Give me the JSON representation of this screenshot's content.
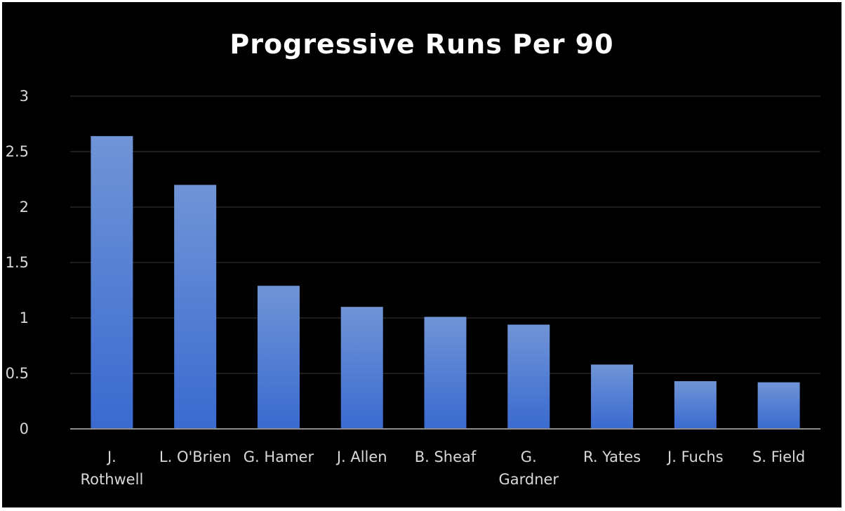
{
  "chart_data": {
    "type": "bar",
    "title": "Progressive Runs Per 90",
    "xlabel": "",
    "ylabel": "",
    "categories": [
      [
        "J.",
        "Rothwell"
      ],
      [
        "L. O'Brien"
      ],
      [
        "G. Hamer"
      ],
      [
        "J. Allen"
      ],
      [
        "B. Sheaf"
      ],
      [
        "G.",
        "Gardner"
      ],
      [
        "R. Yates"
      ],
      [
        "J. Fuchs"
      ],
      [
        "S. Field"
      ]
    ],
    "values": [
      2.64,
      2.2,
      1.29,
      1.1,
      1.01,
      0.94,
      0.58,
      0.43,
      0.42
    ],
    "ylim": [
      0,
      3
    ],
    "yticks": [
      "0",
      "0.5",
      "1",
      "1.5",
      "2",
      "2.5",
      "3"
    ],
    "grid": true,
    "legend": "none",
    "colors": {
      "background": "#000000",
      "bar_top": "#7094d6",
      "bar_bottom": "#3a6ad0",
      "gridline": "#262626",
      "axis": "#8c8c8c",
      "text": "#d9d9d9"
    }
  }
}
